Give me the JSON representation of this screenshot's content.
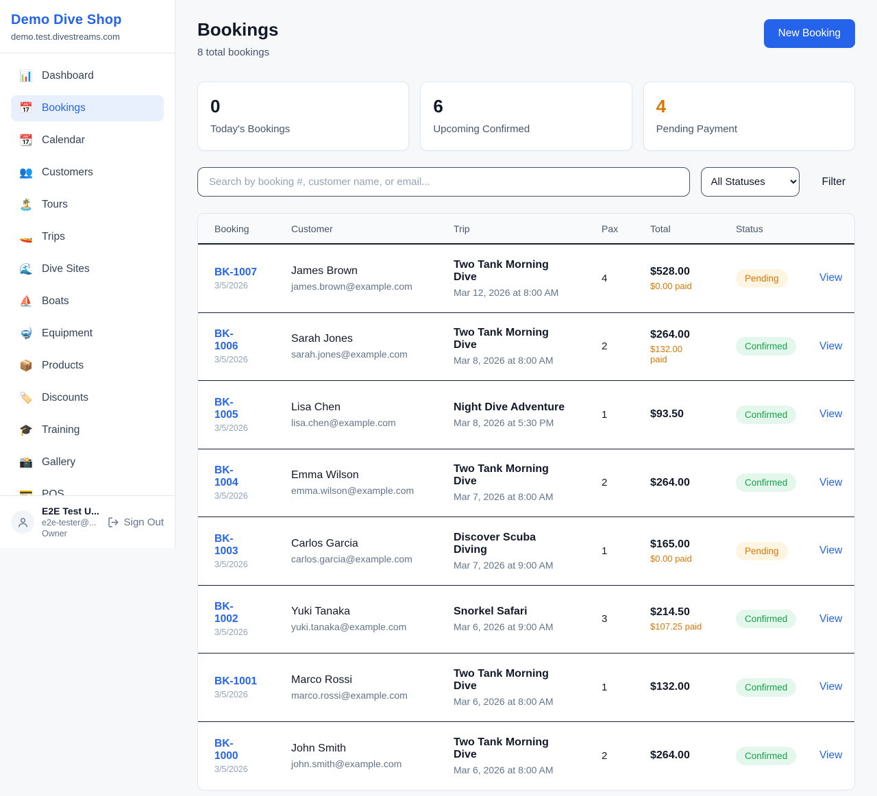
{
  "sidebar": {
    "brand": {
      "name": "Demo Dive Shop",
      "domain": "demo.test.divestreams.com"
    },
    "items": [
      {
        "icon": "📊",
        "icon_name": "bar-chart-icon",
        "label": "Dashboard",
        "active": false
      },
      {
        "icon": "📅",
        "icon_name": "calendar-icon",
        "label": "Bookings",
        "active": true
      },
      {
        "icon": "📆",
        "icon_name": "tear-off-calendar-icon",
        "label": "Calendar",
        "active": false
      },
      {
        "icon": "👥",
        "icon_name": "people-icon",
        "label": "Customers",
        "active": false
      },
      {
        "icon": "🏝️",
        "icon_name": "island-icon",
        "label": "Tours",
        "active": false
      },
      {
        "icon": "🚤",
        "icon_name": "speedboat-icon",
        "label": "Trips",
        "active": false
      },
      {
        "icon": "🌊",
        "icon_name": "wave-icon",
        "label": "Dive Sites",
        "active": false
      },
      {
        "icon": "⛵",
        "icon_name": "sailboat-icon",
        "label": "Boats",
        "active": false
      },
      {
        "icon": "🤿",
        "icon_name": "diving-mask-icon",
        "label": "Equipment",
        "active": false
      },
      {
        "icon": "📦",
        "icon_name": "package-icon",
        "label": "Products",
        "active": false
      },
      {
        "icon": "🏷️",
        "icon_name": "tag-icon",
        "label": "Discounts",
        "active": false
      },
      {
        "icon": "🎓",
        "icon_name": "graduation-cap-icon",
        "label": "Training",
        "active": false
      },
      {
        "icon": "📸",
        "icon_name": "camera-icon",
        "label": "Gallery",
        "active": false
      },
      {
        "icon": "💳",
        "icon_name": "credit-card-icon",
        "label": "POS",
        "active": false
      }
    ],
    "user": {
      "name": "E2E Test U...",
      "email": "e2e-tester@...",
      "role": "Owner",
      "sign_out_label": "Sign Out"
    }
  },
  "header": {
    "title": "Bookings",
    "subtitle": "8 total bookings",
    "new_booking_label": "New Booking"
  },
  "stats": [
    {
      "value": "0",
      "label": "Today's Bookings",
      "color": "#111827"
    },
    {
      "value": "6",
      "label": "Upcoming Confirmed",
      "color": "#111827"
    },
    {
      "value": "4",
      "label": "Pending Payment",
      "color": "#d97706"
    }
  ],
  "filters": {
    "search_placeholder": "Search by booking #, customer name, or email...",
    "status_selected": "All Statuses",
    "filter_label": "Filter"
  },
  "table": {
    "columns": [
      "Booking",
      "Customer",
      "Trip",
      "Pax",
      "Total",
      "Status",
      ""
    ],
    "view_label": "View",
    "rows": [
      {
        "id": "BK-1007",
        "date": "3/5/2026",
        "name": "James Brown",
        "email": "james.brown@example.com",
        "trip": "Two Tank Morning\nDive",
        "datetime": "Mar 12, 2026 at 8:00 AM",
        "pax": "4",
        "total": "$528.00",
        "paid": "$0.00 paid",
        "status": "Pending"
      },
      {
        "id": "BK-\n1006",
        "date": "3/5/2026",
        "name": "Sarah Jones",
        "email": "sarah.jones@example.com",
        "trip": "Two Tank Morning\nDive",
        "datetime": "Mar 8, 2026 at 8:00 AM",
        "pax": "2",
        "total": "$264.00",
        "paid": "$132.00\npaid",
        "status": "Confirmed"
      },
      {
        "id": "BK-\n1005",
        "date": "3/5/2026",
        "name": "Lisa Chen",
        "email": "lisa.chen@example.com",
        "trip": "Night Dive Adventure",
        "datetime": "Mar 8, 2026 at 5:30 PM",
        "pax": "1",
        "total": "$93.50",
        "paid": "",
        "status": "Confirmed"
      },
      {
        "id": "BK-\n1004",
        "date": "3/5/2026",
        "name": "Emma Wilson",
        "email": "emma.wilson@example.com",
        "trip": "Two Tank Morning\nDive",
        "datetime": "Mar 7, 2026 at 8:00 AM",
        "pax": "2",
        "total": "$264.00",
        "paid": "",
        "status": "Confirmed"
      },
      {
        "id": "BK-\n1003",
        "date": "3/5/2026",
        "name": "Carlos Garcia",
        "email": "carlos.garcia@example.com",
        "trip": "Discover Scuba\nDiving",
        "datetime": "Mar 7, 2026 at 9:00 AM",
        "pax": "1",
        "total": "$165.00",
        "paid": "$0.00 paid",
        "status": "Pending"
      },
      {
        "id": "BK-\n1002",
        "date": "3/5/2026",
        "name": "Yuki Tanaka",
        "email": "yuki.tanaka@example.com",
        "trip": "Snorkel Safari",
        "datetime": "Mar 6, 2026 at 9:00 AM",
        "pax": "3",
        "total": "$214.50",
        "paid": "$107.25 paid",
        "status": "Confirmed"
      },
      {
        "id": "BK-1001",
        "date": "3/5/2026",
        "name": "Marco Rossi",
        "email": "marco.rossi@example.com",
        "trip": "Two Tank Morning\nDive",
        "datetime": "Mar 6, 2026 at 8:00 AM",
        "pax": "1",
        "total": "$132.00",
        "paid": "",
        "status": "Confirmed"
      },
      {
        "id": "BK-\n1000",
        "date": "3/5/2026",
        "name": "John Smith",
        "email": "john.smith@example.com",
        "trip": "Two Tank Morning\nDive",
        "datetime": "Mar 6, 2026 at 8:00 AM",
        "pax": "2",
        "total": "$264.00",
        "paid": "",
        "status": "Confirmed"
      }
    ]
  },
  "colors": {
    "accent_blue": "#2563eb",
    "pending_text": "#d97706",
    "pending_bg": "#fdf5e1",
    "confirmed_text": "#16a34a",
    "confirmed_bg": "#e4f7ec",
    "paid_orange": "#d97706",
    "page_bg": "#f6f8fa",
    "card_border": "#e2e8f0",
    "row_divider": "#16202e"
  }
}
